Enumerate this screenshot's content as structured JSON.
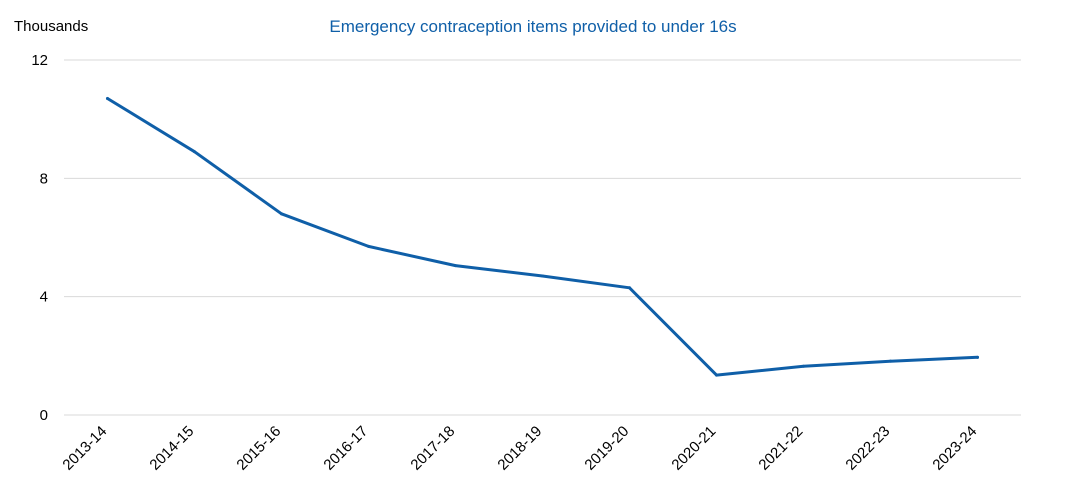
{
  "chart_data": {
    "type": "line",
    "title": "Emergency contraception items provided to under 16s",
    "unit_label": "Thousands",
    "xlabel": "",
    "ylabel": "",
    "categories": [
      "2013-14",
      "2014-15",
      "2015-16",
      "2016-17",
      "2017-18",
      "2018-19",
      "2019-20",
      "2020-21",
      "2021-22",
      "2022-23",
      "2023-24"
    ],
    "series": [
      {
        "values": [
          10.7,
          8.9,
          6.8,
          5.7,
          5.05,
          4.7,
          4.3,
          1.35,
          1.65,
          1.82,
          1.95
        ],
        "color": "#0f5fa8"
      }
    ],
    "ylim": [
      0,
      12
    ],
    "yticks": [
      0,
      4,
      8,
      12
    ],
    "grid": true,
    "legend": "none",
    "title_color": "#0f5fa8",
    "grid_color": "#d9d9d9"
  }
}
